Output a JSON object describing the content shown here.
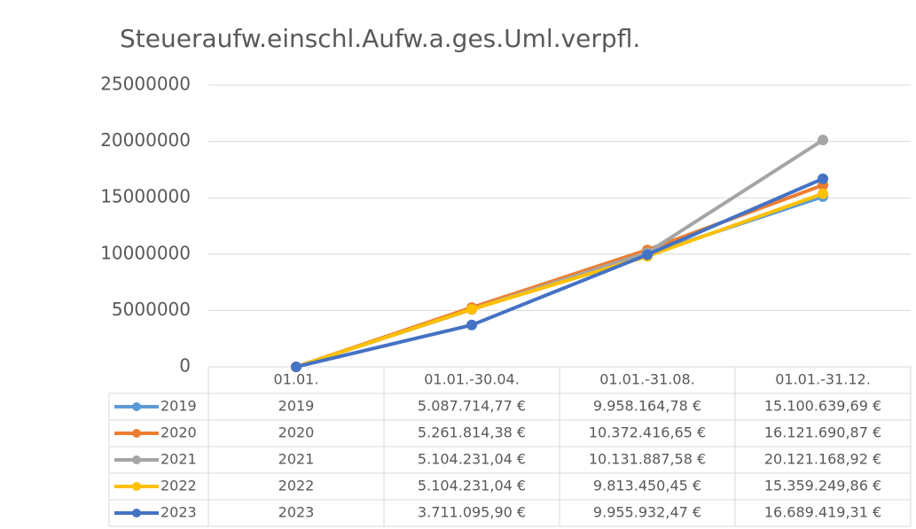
{
  "chart_data": {
    "type": "line",
    "title": "Steueraufw.einschl.Aufw.a.ges.Uml.verpfl.",
    "categories": [
      "01.01.",
      "01.01.-30.04.",
      "01.01.-31.08.",
      "01.01.-31.12."
    ],
    "series": [
      {
        "name": "2019",
        "color": "#5b9bd5",
        "values": [
          2019,
          5087714.77,
          9958164.78,
          15100639.69
        ],
        "value_labels": [
          "2019",
          "5.087.714,77 €",
          "9.958.164,78 €",
          "15.100.639,69 €"
        ]
      },
      {
        "name": "2020",
        "color": "#ed7d31",
        "values": [
          2020,
          5261814.38,
          10372416.65,
          16121690.87
        ],
        "value_labels": [
          "2020",
          "5.261.814,38 €",
          "10.372.416,65 €",
          "16.121.690,87 €"
        ]
      },
      {
        "name": "2021",
        "color": "#a5a5a5",
        "values": [
          2021,
          5104231.04,
          10131887.58,
          20121168.92
        ],
        "value_labels": [
          "2021",
          "5.104.231,04 €",
          "10.131.887,58 €",
          "20.121.168,92 €"
        ]
      },
      {
        "name": "2022",
        "color": "#ffc000",
        "values": [
          2022,
          5104231.04,
          9813450.45,
          15359249.86
        ],
        "value_labels": [
          "2022",
          "5.104.231,04 €",
          "9.813.450,45 €",
          "15.359.249,86 €"
        ]
      },
      {
        "name": "2023",
        "color": "#4472c4",
        "values": [
          2023,
          3711095.9,
          9955932.47,
          16689419.31
        ],
        "value_labels": [
          "2023",
          "3.711.095,90 €",
          "9.955.932,47 €",
          "16.689.419,31 €"
        ]
      }
    ],
    "ylim": [
      0,
      25000000
    ],
    "yticks": [
      0,
      5000000,
      10000000,
      15000000,
      20000000,
      25000000
    ],
    "grid": true
  }
}
